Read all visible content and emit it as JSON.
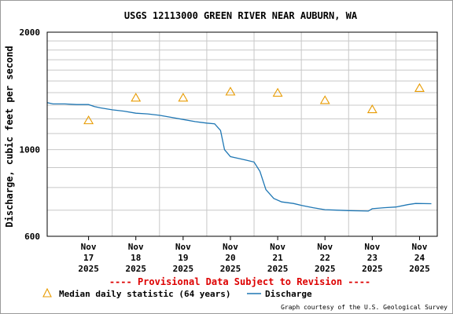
{
  "chart_data": {
    "type": "line",
    "title": "USGS 12113000 GREEN RIVER NEAR AUBURN, WA",
    "ylabel": "Discharge, cubic feet per second",
    "xlabel": "",
    "y_scale": "log",
    "ylim": [
      600,
      2000
    ],
    "y_ticks": [
      {
        "value": 600,
        "label": "600"
      },
      {
        "value": 1000,
        "label": "1000"
      },
      {
        "value": 2000,
        "label": "2000"
      }
    ],
    "y_minor_gridlines": [
      700,
      800,
      900,
      1100,
      1200,
      1300,
      1400,
      1500,
      1600,
      1700,
      1800,
      1900
    ],
    "xlim": [
      "2025-11-16T15:00",
      "2025-11-24T21:00"
    ],
    "x_ticks": [
      {
        "x": "2025-11-17T12:00",
        "lines": [
          "Nov",
          "17",
          "2025"
        ]
      },
      {
        "x": "2025-11-18T12:00",
        "lines": [
          "Nov",
          "18",
          "2025"
        ]
      },
      {
        "x": "2025-11-19T12:00",
        "lines": [
          "Nov",
          "19",
          "2025"
        ]
      },
      {
        "x": "2025-11-20T12:00",
        "lines": [
          "Nov",
          "20",
          "2025"
        ]
      },
      {
        "x": "2025-11-21T12:00",
        "lines": [
          "Nov",
          "21",
          "2025"
        ]
      },
      {
        "x": "2025-11-22T12:00",
        "lines": [
          "Nov",
          "22",
          "2025"
        ]
      },
      {
        "x": "2025-11-23T12:00",
        "lines": [
          "Nov",
          "23",
          "2025"
        ]
      },
      {
        "x": "2025-11-24T12:00",
        "lines": [
          "Nov",
          "24",
          "2025"
        ]
      }
    ],
    "x_day_boundaries": [
      "2025-11-18T00:00",
      "2025-11-19T00:00",
      "2025-11-20T00:00",
      "2025-11-21T00:00",
      "2025-11-22T00:00",
      "2025-11-23T00:00",
      "2025-11-24T00:00"
    ],
    "grid": true,
    "series": [
      {
        "name": "Discharge",
        "kind": "line",
        "color": "#1f77b4",
        "points": [
          [
            "2025-11-16T15:00",
            1320
          ],
          [
            "2025-11-16T18:00",
            1310
          ],
          [
            "2025-11-17T00:00",
            1310
          ],
          [
            "2025-11-17T06:00",
            1305
          ],
          [
            "2025-11-17T12:00",
            1305
          ],
          [
            "2025-11-17T15:00",
            1290
          ],
          [
            "2025-11-17T18:00",
            1280
          ],
          [
            "2025-11-18T00:00",
            1265
          ],
          [
            "2025-11-18T06:00",
            1255
          ],
          [
            "2025-11-18T12:00",
            1240
          ],
          [
            "2025-11-18T18:00",
            1235
          ],
          [
            "2025-11-19T00:00",
            1225
          ],
          [
            "2025-11-19T06:00",
            1210
          ],
          [
            "2025-11-19T12:00",
            1195
          ],
          [
            "2025-11-19T18:00",
            1180
          ],
          [
            "2025-11-20T00:00",
            1170
          ],
          [
            "2025-11-20T04:00",
            1165
          ],
          [
            "2025-11-20T07:00",
            1120
          ],
          [
            "2025-11-20T09:00",
            1000
          ],
          [
            "2025-11-20T12:00",
            960
          ],
          [
            "2025-11-20T16:00",
            950
          ],
          [
            "2025-11-20T20:00",
            940
          ],
          [
            "2025-11-21T00:00",
            930
          ],
          [
            "2025-11-21T03:00",
            880
          ],
          [
            "2025-11-21T06:00",
            790
          ],
          [
            "2025-11-21T10:00",
            750
          ],
          [
            "2025-11-21T14:00",
            735
          ],
          [
            "2025-11-21T20:00",
            728
          ],
          [
            "2025-11-22T00:00",
            720
          ],
          [
            "2025-11-22T06:00",
            710
          ],
          [
            "2025-11-22T12:00",
            702
          ],
          [
            "2025-11-22T18:00",
            700
          ],
          [
            "2025-11-23T00:00",
            698
          ],
          [
            "2025-11-23T06:00",
            697
          ],
          [
            "2025-11-23T10:00",
            696
          ],
          [
            "2025-11-23T12:00",
            706
          ],
          [
            "2025-11-23T18:00",
            710
          ],
          [
            "2025-11-24T00:00",
            713
          ],
          [
            "2025-11-24T06:00",
            723
          ],
          [
            "2025-11-24T10:00",
            728
          ],
          [
            "2025-11-24T18:00",
            727
          ]
        ]
      },
      {
        "name": "Median daily statistic (64 years)",
        "kind": "marker",
        "marker": "triangle",
        "color": "#e89b00",
        "points": [
          [
            "2025-11-17T12:00",
            1190
          ],
          [
            "2025-11-18T12:00",
            1360
          ],
          [
            "2025-11-19T12:00",
            1360
          ],
          [
            "2025-11-20T12:00",
            1410
          ],
          [
            "2025-11-21T12:00",
            1400
          ],
          [
            "2025-11-22T12:00",
            1340
          ],
          [
            "2025-11-23T12:00",
            1270
          ],
          [
            "2025-11-24T12:00",
            1440
          ]
        ]
      }
    ],
    "legend": {
      "placement": "bottom",
      "entries": [
        {
          "label": "Median daily statistic (64 years)",
          "symbol": "triangle",
          "color": "#e89b00"
        },
        {
          "label": "Discharge",
          "symbol": "line",
          "color": "#1f77b4"
        }
      ]
    },
    "annotations": {
      "provisional": "---- Provisional Data Subject to Revision ----",
      "provisional_color": "#dd0000",
      "credit": "Graph courtesy of the U.S. Geological Survey"
    }
  }
}
